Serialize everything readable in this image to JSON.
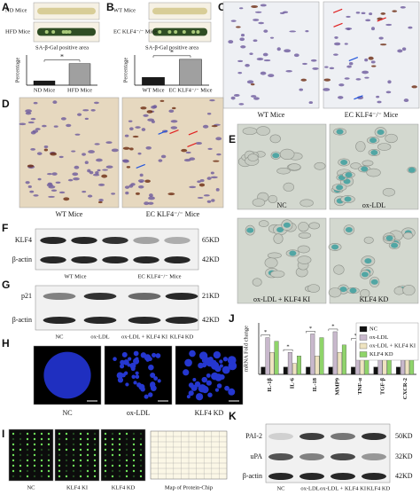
{
  "panels": [
    {
      "letter": "A",
      "labels": [
        "ND Mice",
        "HFD Mice"
      ]
    },
    {
      "letter": "B",
      "labels": [
        "WT Mice",
        "EC KLF4⁻/⁻ Mice"
      ]
    },
    {
      "letter": "C",
      "labels": [
        "WT Mice",
        "EC KLF4⁻/⁻ Mice"
      ]
    },
    {
      "letter": "D",
      "labels": [
        "WT Mice",
        "EC KLF4⁻/⁻ Mice"
      ]
    },
    {
      "letter": "E",
      "labels": [
        "NC",
        "ox-LDL",
        "ox-LDL + KLF4 KI",
        "KLF4 KD"
      ]
    },
    {
      "letter": "F",
      "rows": [
        "KLF4",
        "β-actin"
      ],
      "sizes": [
        "65KD",
        "42KD"
      ],
      "lanes": [
        "WT Mice",
        "EC KLF4⁻/⁻ Mice"
      ]
    },
    {
      "letter": "G",
      "rows": [
        "p21",
        "β-actin"
      ],
      "sizes": [
        "21KD",
        "42KD"
      ],
      "lanes": [
        "NC",
        "ox-LDL",
        "ox-LDL + KLF4 KI",
        "KLF4 KD"
      ]
    },
    {
      "letter": "H",
      "labels": [
        "NC",
        "ox-LDL",
        "KLF4 KD"
      ]
    },
    {
      "letter": "I",
      "labels": [
        "NC",
        "KLF4 KI",
        "KLF4 KD"
      ],
      "map_title": "Map of Protein-Chip"
    },
    {
      "letter": "J"
    },
    {
      "letter": "K",
      "rows": [
        "PAI-2",
        "uPA",
        "β-actin"
      ],
      "sizes": [
        "50KD",
        "32KD",
        "42KD"
      ],
      "lanes": [
        "NC",
        "ox-LDL",
        "ox-LDL + KLF4 KI",
        "KLF4 KD"
      ]
    }
  ],
  "chart_data": [
    {
      "type": "bar",
      "title": "SA-β-Gal positive area",
      "ylabel": "Percentage",
      "categories": [
        "ND Mice",
        "HFD Mice"
      ],
      "values": [
        0.5,
        2.5
      ],
      "colors": [
        "#1a1a1a",
        "#a0a0a0"
      ],
      "ylim": [
        0,
        3.5
      ],
      "annotation": "*"
    },
    {
      "type": "bar",
      "title": "SA-β-Gal positive area",
      "ylabel": "Percentage",
      "categories": [
        "WT Mice",
        "EC KLF4⁻/⁻ Mice"
      ],
      "values": [
        0.9,
        3.0
      ],
      "colors": [
        "#1a1a1a",
        "#a0a0a0"
      ],
      "ylim": [
        0,
        3.5
      ],
      "annotation": "*"
    },
    {
      "type": "grouped-bar",
      "ylabel": "mRNA Fold change",
      "categories": [
        "IL-1β",
        "IL-6",
        "IL-18",
        "MMP9",
        "TNF-α",
        "TGF-β",
        "CXCR-2"
      ],
      "series": [
        {
          "name": "NC",
          "color": "#111111",
          "values": [
            1,
            1,
            1,
            1,
            1,
            1,
            1
          ]
        },
        {
          "name": "ox-LDL",
          "color": "#c8b8cc",
          "values": [
            5,
            3,
            5.5,
            5.8,
            4.5,
            5,
            4.5
          ]
        },
        {
          "name": "ox-LDL + KLF4 KI",
          "color": "#eee3c0",
          "values": [
            3,
            1.5,
            2.5,
            3,
            2,
            2.5,
            2
          ]
        },
        {
          "name": "KLF4 KD",
          "color": "#8fd46a",
          "values": [
            4.5,
            2.5,
            5,
            4,
            3.5,
            4,
            3.8
          ]
        }
      ],
      "ylim": [
        0,
        7
      ],
      "annotation": "*"
    }
  ]
}
